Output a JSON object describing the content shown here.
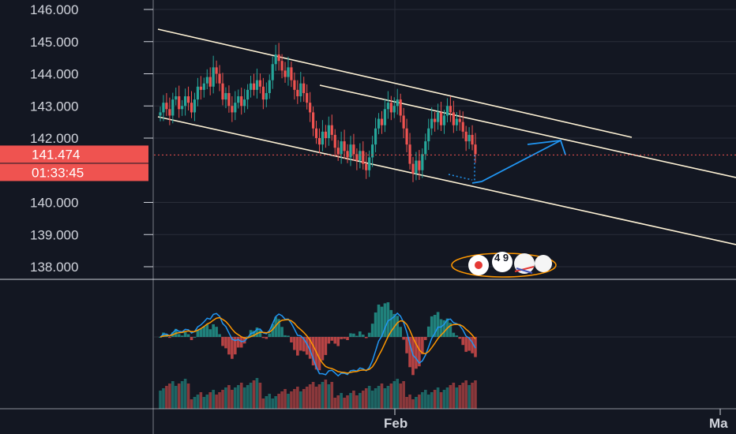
{
  "chart_data": {
    "type": "candlestick",
    "y_axis": {
      "min": 137.6,
      "max": 146.25,
      "tick_labels": [
        "146.000",
        "145.000",
        "144.000",
        "143.000",
        "142.000",
        "140.000",
        "139.000",
        "138.000"
      ],
      "tick_values": [
        146,
        145,
        144,
        143,
        142,
        140,
        139,
        138
      ]
    },
    "x_axis": {
      "tick_labels": [
        "Feb",
        "Ma"
      ]
    },
    "last_price": {
      "label": "141.474",
      "value": 141.474,
      "color": "#ef5350"
    },
    "countdown": {
      "label": "01:33:45"
    },
    "colors": {
      "up": "#26a69a",
      "down": "#ef5350",
      "channel": "#fff3d6",
      "projection": "#2196f3",
      "macd": "#2196f3",
      "signal": "#ff9800",
      "background": "#131722",
      "axis": "#d1d4dc"
    },
    "closes": [
      142.8,
      143.1,
      142.9,
      142.7,
      143.2,
      143.3,
      142.9,
      143.0,
      143.3,
      143.1,
      142.8,
      143.2,
      143.6,
      143.5,
      143.7,
      143.9,
      143.6,
      144.2,
      144.0,
      143.7,
      143.2,
      143.4,
      143.0,
      142.8,
      143.1,
      143.3,
      143.0,
      143.2,
      143.5,
      143.7,
      143.5,
      143.8,
      143.6,
      143.2,
      143.4,
      143.8,
      144.3,
      144.6,
      144.4,
      144.1,
      143.9,
      144.2,
      143.8,
      143.5,
      143.3,
      143.7,
      143.4,
      143.1,
      142.8,
      142.3,
      142.0,
      141.8,
      142.2,
      142.0,
      142.4,
      142.1,
      141.7,
      141.5,
      141.9,
      141.6,
      141.4,
      141.8,
      141.5,
      141.3,
      141.6,
      141.2,
      141.0,
      141.4,
      141.8,
      142.3,
      142.6,
      142.4,
      142.9,
      143.1,
      142.8,
      143.0,
      143.2,
      142.7,
      142.3,
      141.8,
      141.2,
      140.9,
      141.3,
      141.0,
      141.5,
      141.9,
      142.3,
      142.6,
      142.5,
      142.8,
      142.4,
      142.7,
      143.0,
      142.8,
      142.4,
      142.6,
      142.5,
      142.2,
      141.9,
      142.1,
      141.8,
      141.5
    ],
    "projection": {
      "type": "arrow-path",
      "points": [
        [
          141.474,
          140.6
        ],
        [
          141.9,
          141.4
        ]
      ]
    },
    "event_badge": {
      "count": "4 9"
    }
  }
}
